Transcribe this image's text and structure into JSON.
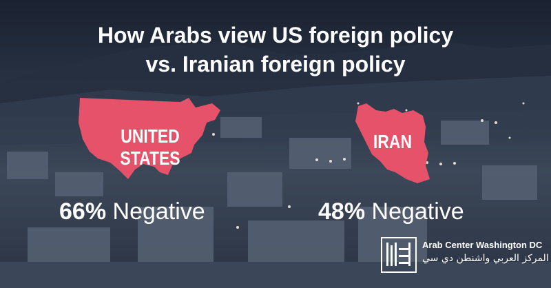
{
  "title": {
    "line1": "How Arabs view US foreign policy",
    "line2": "vs. Iranian foreign policy"
  },
  "countries": [
    {
      "name": "UNITED STATES",
      "percent": "66%",
      "word": "Negative"
    },
    {
      "name": "IRAN",
      "percent": "48%",
      "word": "Negative"
    }
  ],
  "org": {
    "name_en": "Arab Center Washington DC",
    "name_ar": "المركز العربي واشنطن دي سي",
    "logo_text": "المركز العربي"
  },
  "colors": {
    "map_fill": "#e5526a",
    "text": "#ffffff",
    "background": "#2a3547"
  }
}
